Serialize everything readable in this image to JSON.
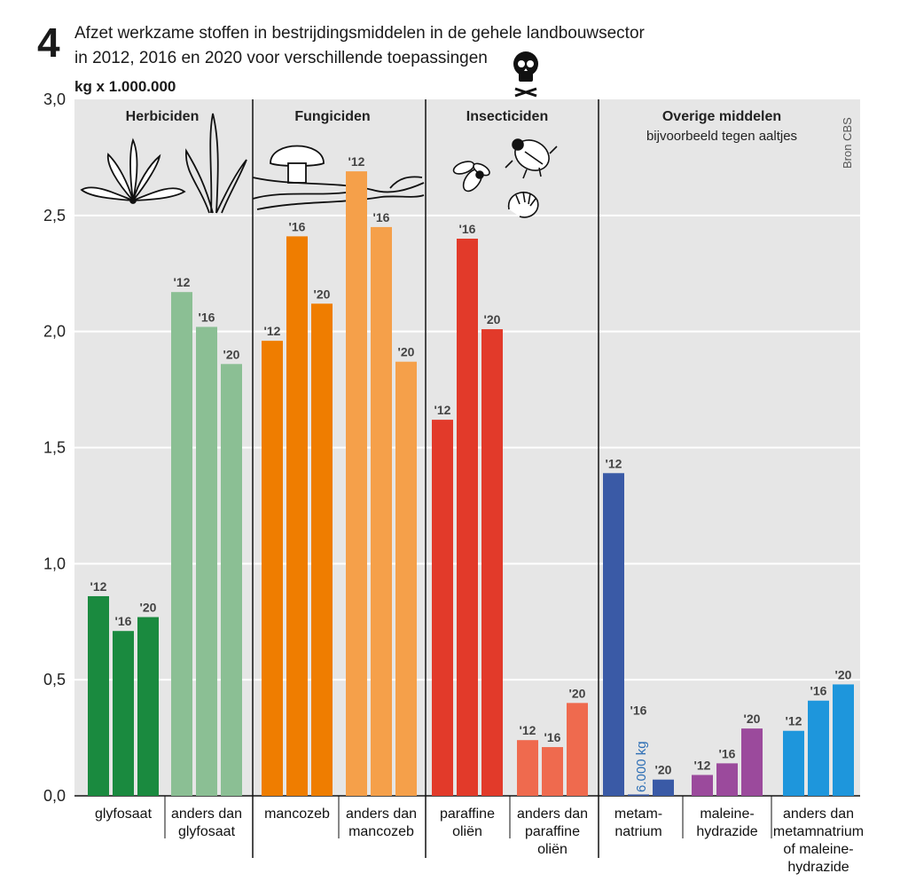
{
  "figure_number": "4",
  "title_line1": "Afzet werkzame stoffen in bestrijdingsmiddelen in de gehele landbouwsector",
  "title_line2": "in 2012, 2016 en 2020 voor verschillende toepassingen",
  "source": "Bron CBS",
  "icons": [
    "skull-crossbones-icon",
    "dandelion-icon",
    "grass-icon",
    "mushroom-icon",
    "root-branch-icon",
    "fly-icon",
    "beetle-icon",
    "larva-icon"
  ],
  "chart_data": {
    "type": "bar",
    "ylabel": "kg x 1.000.000",
    "ylim": [
      0,
      3.0
    ],
    "yticks": [
      0,
      0.5,
      1.0,
      1.5,
      2.0,
      2.5,
      3.0
    ],
    "ytick_labels": [
      "0,0",
      "0,5",
      "1,0",
      "1,5",
      "2,0",
      "2,5",
      "3,0"
    ],
    "grid": true,
    "year_labels": [
      "'12",
      "'16",
      "'20"
    ],
    "groups": [
      {
        "title": "Herbiciden",
        "subtitle": "",
        "categories": [
          {
            "label": [
              "glyfosaat"
            ],
            "values": [
              0.86,
              0.71,
              0.77
            ],
            "color": "#1a8a3f"
          },
          {
            "label": [
              "anders dan",
              "glyfosaat"
            ],
            "values": [
              2.17,
              2.02,
              1.86
            ],
            "color": "#8bbf94"
          }
        ]
      },
      {
        "title": "Fungiciden",
        "subtitle": "",
        "categories": [
          {
            "label": [
              "mancozeb"
            ],
            "values": [
              1.96,
              2.41,
              2.12
            ],
            "color": "#ef7d00"
          },
          {
            "label": [
              "anders dan",
              "mancozeb"
            ],
            "values": [
              2.69,
              2.45,
              1.87
            ],
            "color": "#f5a04a"
          }
        ]
      },
      {
        "title": "Insecticiden",
        "subtitle": "",
        "categories": [
          {
            "label": [
              "paraffine",
              "oliën"
            ],
            "values": [
              1.62,
              2.4,
              2.01
            ],
            "color": "#e23a2a"
          },
          {
            "label": [
              "anders dan",
              "paraffine",
              "oliën"
            ],
            "values": [
              0.24,
              0.21,
              0.4
            ],
            "color": "#ef6a4e"
          }
        ]
      },
      {
        "title": "Overige middelen",
        "subtitle": "bijvoorbeeld tegen aaltjes",
        "categories": [
          {
            "label": [
              "metam-",
              "natrium"
            ],
            "values": [
              1.39,
              0.006,
              0.07
            ],
            "color": "#3a5aa6"
          },
          {
            "label": [
              "maleine-",
              "hydrazide"
            ],
            "values": [
              0.09,
              0.14,
              0.29
            ],
            "color": "#9b4a9c"
          },
          {
            "label": [
              "anders dan",
              "metamnatrium",
              "of maleine-",
              "hydrazide"
            ],
            "values": [
              0.28,
              0.41,
              0.48
            ],
            "color": "#1e96dc"
          }
        ]
      }
    ],
    "annotations": [
      {
        "category": "metamnatrium",
        "year": "'16",
        "text": "6.000 kg"
      }
    ]
  }
}
